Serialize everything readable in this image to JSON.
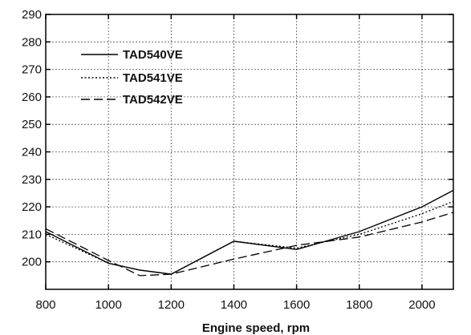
{
  "chart_data": {
    "type": "line",
    "title": "",
    "xlabel": "Engine speed, rpm",
    "ylabel": "",
    "xlim": [
      800,
      2100
    ],
    "ylim": [
      190,
      290
    ],
    "xticks": [
      800,
      1000,
      1200,
      1400,
      1600,
      1800,
      2000
    ],
    "yticks": [
      200,
      210,
      220,
      230,
      240,
      250,
      260,
      270,
      280,
      290
    ],
    "grid": true,
    "legend_position": "top-left",
    "series": [
      {
        "name": "TAD540VE",
        "style": "solid",
        "color": "#000000",
        "x": [
          800,
          1000,
          1100,
          1200,
          1400,
          1600,
          1800,
          2000,
          2100
        ],
        "y": [
          211,
          199.5,
          197,
          195.5,
          207.5,
          204.5,
          211,
          220,
          226
        ]
      },
      {
        "name": "TAD541VE",
        "style": "dotted",
        "color": "#000000",
        "x": [
          800,
          1000,
          1100,
          1200,
          1400,
          1600,
          1800,
          2000,
          2100
        ],
        "y": [
          210,
          199.5,
          197,
          195.5,
          207.5,
          205,
          210,
          217.5,
          222
        ]
      },
      {
        "name": "TAD542VE",
        "style": "dashed",
        "color": "#000000",
        "x": [
          800,
          1000,
          1100,
          1200,
          1400,
          1600,
          1800,
          2000,
          2100
        ],
        "y": [
          212,
          200.5,
          195,
          195.5,
          201,
          206,
          209,
          214.5,
          218
        ]
      }
    ]
  }
}
